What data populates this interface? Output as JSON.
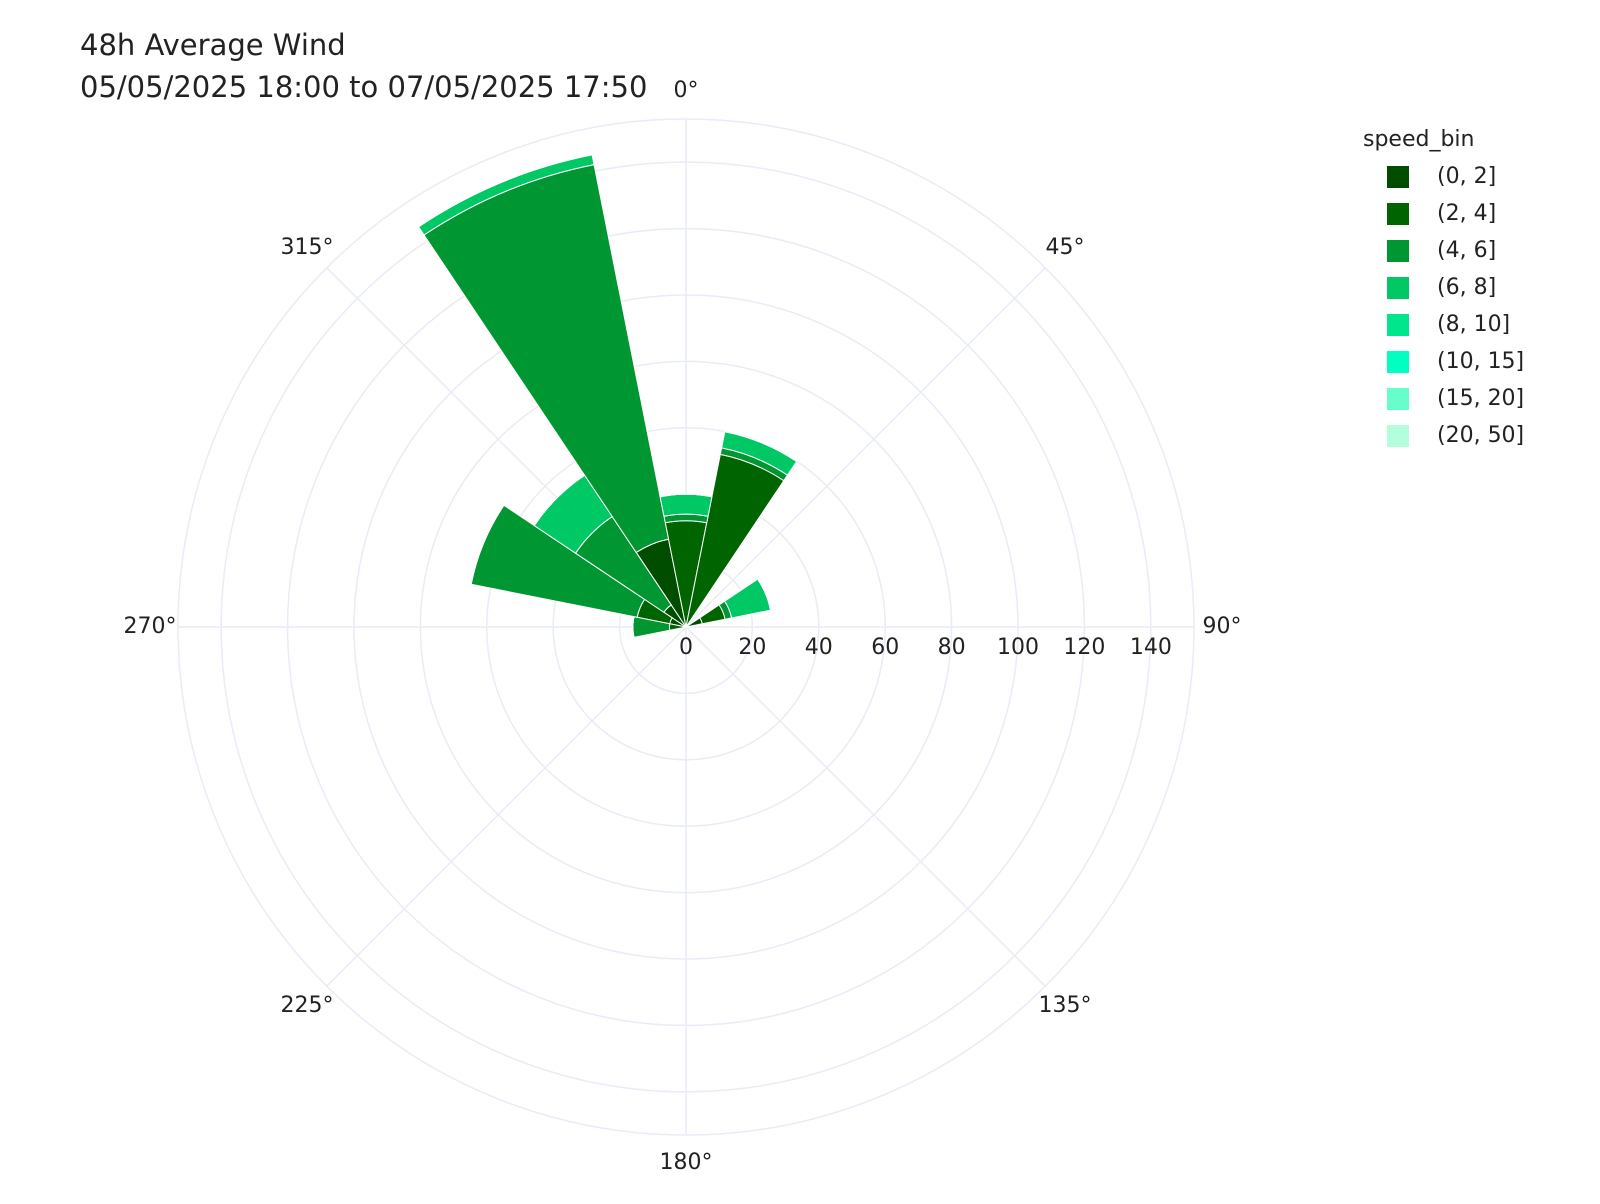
{
  "chart_data": {
    "type": "barpolar",
    "title": "48h Average Wind",
    "subtitle": "05/05/2025 18:00 to 07/05/2025 17:50",
    "legend_title": "speed_bin",
    "theta": [
      0,
      22.5,
      67.5,
      270,
      292.5,
      315,
      337.5
    ],
    "series": [
      {
        "name": "(0, 2]",
        "color": "#004d00",
        "values": [
          0,
          0,
          5,
          0,
          5,
          8,
          27
        ]
      },
      {
        "name": "(2, 4]",
        "color": "#006400",
        "values": [
          32,
          53,
          7,
          5,
          10,
          0,
          0
        ]
      },
      {
        "name": "(4, 6]",
        "color": "#009632",
        "values": [
          2,
          2,
          2,
          11,
          51,
          32,
          115
        ]
      },
      {
        "name": "(6, 8]",
        "color": "#00c864",
        "values": [
          6,
          5,
          12,
          0,
          0,
          15,
          3
        ]
      },
      {
        "name": "(8, 10]",
        "color": "#00e68c",
        "values": [
          0,
          0,
          0,
          0,
          0,
          0,
          0
        ]
      },
      {
        "name": "(10, 15]",
        "color": "#00ffc0",
        "values": [
          0,
          0,
          0,
          0,
          0,
          0,
          0
        ]
      },
      {
        "name": "(15, 20]",
        "color": "#66ffcc",
        "values": [
          0,
          0,
          0,
          0,
          0,
          0,
          0
        ]
      },
      {
        "name": "(20, 50]",
        "color": "#b3ffdd",
        "values": [
          0,
          0,
          0,
          0,
          0,
          0,
          0
        ]
      }
    ],
    "rlim": [
      0,
      153
    ],
    "rticks": [
      0,
      20,
      40,
      60,
      80,
      100,
      120,
      140
    ],
    "thetaticks": [
      {
        "value": 0,
        "label": "0°"
      },
      {
        "value": 45,
        "label": "45°"
      },
      {
        "value": 90,
        "label": "90°"
      },
      {
        "value": 135,
        "label": "135°"
      },
      {
        "value": 180,
        "label": "180°"
      },
      {
        "value": 225,
        "label": "225°"
      },
      {
        "value": 270,
        "label": "270°"
      },
      {
        "value": 315,
        "label": "315°"
      }
    ],
    "bar_width": 22.5,
    "grid": true
  }
}
